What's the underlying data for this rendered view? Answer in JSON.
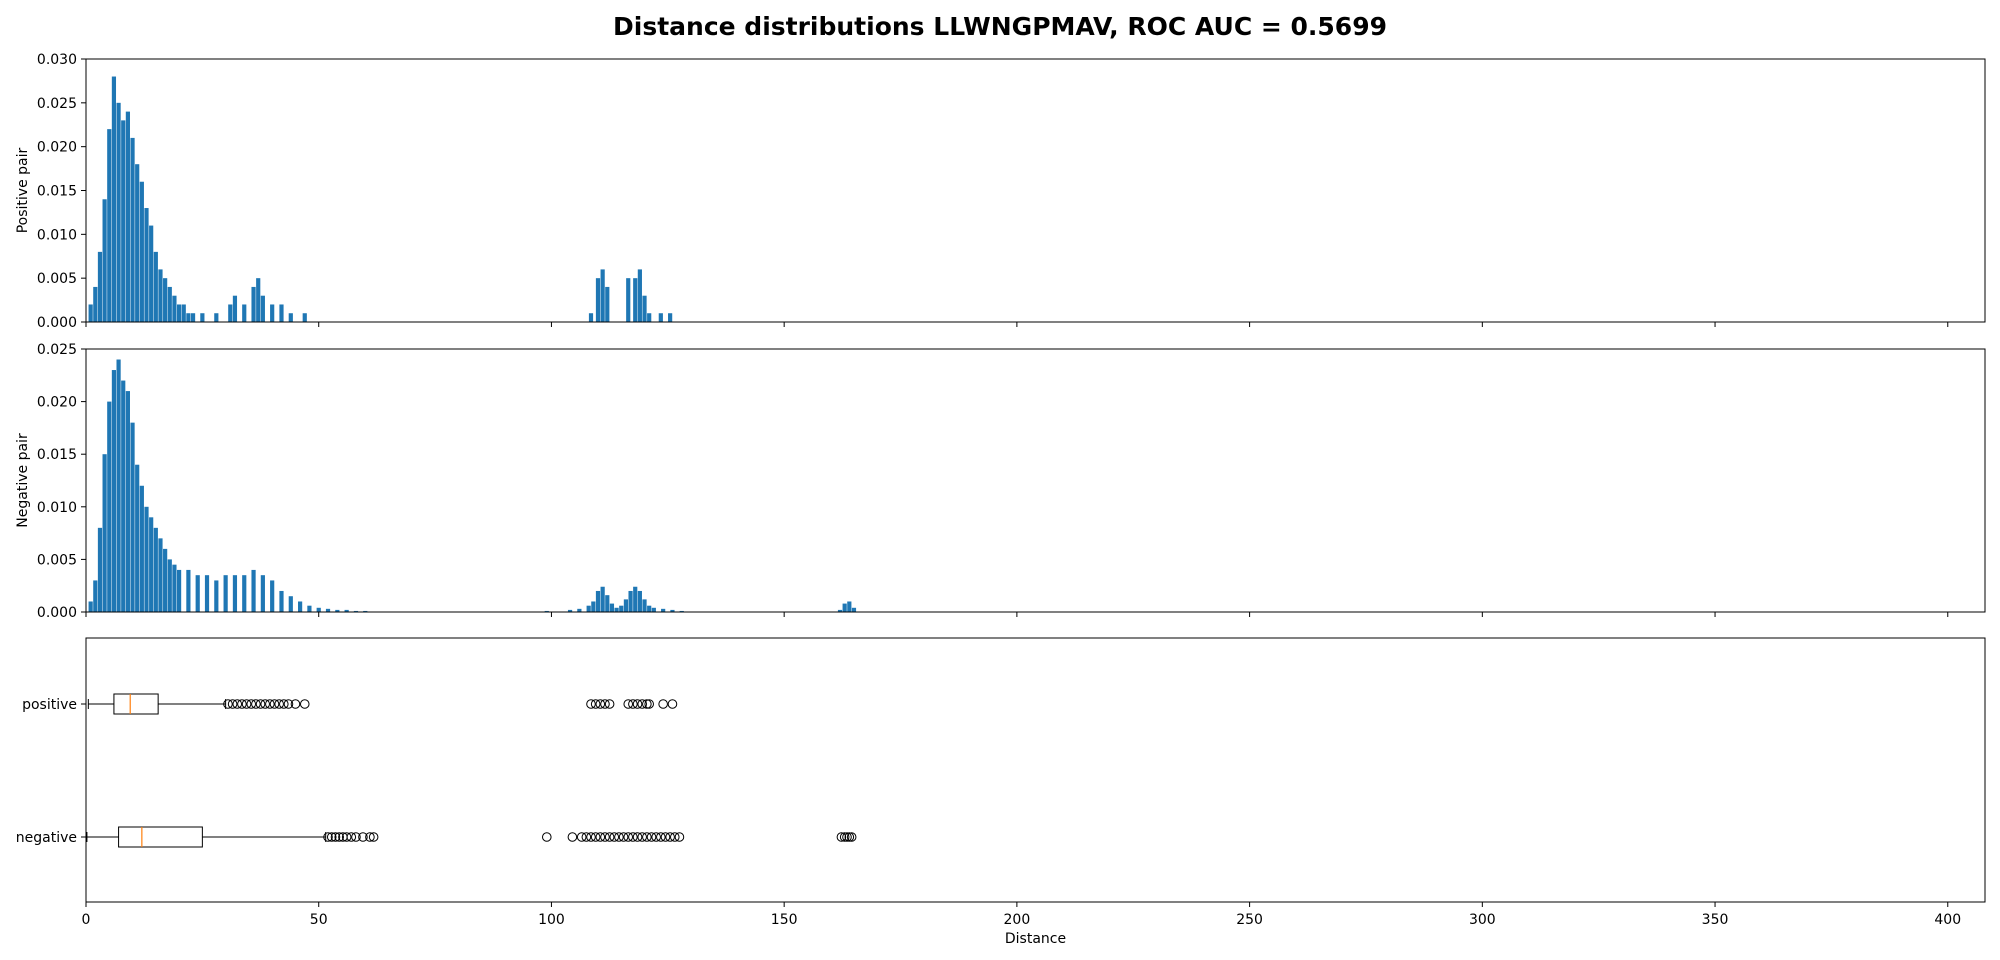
{
  "chart_data": {
    "type": "histogram",
    "title": "Distance distributions LLWNGPMAV, ROC AUC = 0.5699",
    "xlabel": "Distance",
    "xlim": [
      0,
      408
    ],
    "xticks": [
      0,
      50,
      100,
      150,
      200,
      250,
      300,
      350,
      400
    ],
    "color": "#1f77b4",
    "median_color": "#ff7f0e",
    "grid": false,
    "histograms": [
      {
        "name": "positive",
        "ylabel": "Positive pair",
        "ylim": [
          0,
          0.03
        ],
        "yticks": [
          "0.000",
          "0.005",
          "0.010",
          "0.015",
          "0.020",
          "0.025",
          "0.030"
        ],
        "bins": [
          [
            1,
            0.002
          ],
          [
            2,
            0.004
          ],
          [
            3,
            0.008
          ],
          [
            4,
            0.014
          ],
          [
            5,
            0.022
          ],
          [
            6,
            0.028
          ],
          [
            7,
            0.025
          ],
          [
            8,
            0.023
          ],
          [
            9,
            0.024
          ],
          [
            10,
            0.021
          ],
          [
            11,
            0.018
          ],
          [
            12,
            0.016
          ],
          [
            13,
            0.013
          ],
          [
            14,
            0.011
          ],
          [
            15,
            0.008
          ],
          [
            16,
            0.006
          ],
          [
            17,
            0.005
          ],
          [
            18,
            0.004
          ],
          [
            19,
            0.003
          ],
          [
            20,
            0.002
          ],
          [
            21,
            0.002
          ],
          [
            22,
            0.001
          ],
          [
            23,
            0.001
          ],
          [
            25,
            0.001
          ],
          [
            28,
            0.001
          ],
          [
            31,
            0.002
          ],
          [
            32,
            0.003
          ],
          [
            34,
            0.002
          ],
          [
            36,
            0.004
          ],
          [
            37,
            0.005
          ],
          [
            38,
            0.003
          ],
          [
            40,
            0.002
          ],
          [
            42,
            0.002
          ],
          [
            44,
            0.001
          ],
          [
            47,
            0.001
          ],
          [
            108.5,
            0.001
          ],
          [
            110,
            0.005
          ],
          [
            111,
            0.006
          ],
          [
            112,
            0.004
          ],
          [
            116.5,
            0.005
          ],
          [
            118,
            0.005
          ],
          [
            119,
            0.006
          ],
          [
            120,
            0.003
          ],
          [
            121,
            0.001
          ],
          [
            123.5,
            0.001
          ],
          [
            125.5,
            0.001
          ]
        ]
      },
      {
        "name": "negative",
        "ylabel": "Negative pair",
        "ylim": [
          0,
          0.025
        ],
        "yticks": [
          "0.000",
          "0.005",
          "0.010",
          "0.015",
          "0.020",
          "0.025"
        ],
        "bins": [
          [
            1,
            0.001
          ],
          [
            2,
            0.003
          ],
          [
            3,
            0.008
          ],
          [
            4,
            0.015
          ],
          [
            5,
            0.02
          ],
          [
            6,
            0.023
          ],
          [
            7,
            0.024
          ],
          [
            8,
            0.022
          ],
          [
            9,
            0.021
          ],
          [
            10,
            0.018
          ],
          [
            11,
            0.014
          ],
          [
            12,
            0.012
          ],
          [
            13,
            0.01
          ],
          [
            14,
            0.009
          ],
          [
            15,
            0.008
          ],
          [
            16,
            0.007
          ],
          [
            17,
            0.006
          ],
          [
            18,
            0.005
          ],
          [
            19,
            0.0045
          ],
          [
            20,
            0.004
          ],
          [
            22,
            0.004
          ],
          [
            24,
            0.0035
          ],
          [
            26,
            0.0035
          ],
          [
            28,
            0.003
          ],
          [
            30,
            0.0035
          ],
          [
            32,
            0.0035
          ],
          [
            34,
            0.0035
          ],
          [
            36,
            0.004
          ],
          [
            38,
            0.0035
          ],
          [
            40,
            0.003
          ],
          [
            42,
            0.002
          ],
          [
            44,
            0.0015
          ],
          [
            46,
            0.001
          ],
          [
            48,
            0.0006
          ],
          [
            50,
            0.0004
          ],
          [
            52,
            0.0003
          ],
          [
            54,
            0.0002
          ],
          [
            56,
            0.0002
          ],
          [
            58,
            0.0001
          ],
          [
            60,
            0.0001
          ],
          [
            99,
            0.0001
          ],
          [
            104,
            0.0002
          ],
          [
            106,
            0.0003
          ],
          [
            108,
            0.0006
          ],
          [
            109,
            0.001
          ],
          [
            110,
            0.002
          ],
          [
            111,
            0.0024
          ],
          [
            112,
            0.0016
          ],
          [
            113,
            0.0008
          ],
          [
            114,
            0.0004
          ],
          [
            115,
            0.0006
          ],
          [
            116,
            0.0012
          ],
          [
            117,
            0.002
          ],
          [
            118,
            0.0024
          ],
          [
            119,
            0.002
          ],
          [
            120,
            0.0012
          ],
          [
            121,
            0.0006
          ],
          [
            122,
            0.0004
          ],
          [
            124,
            0.0003
          ],
          [
            126,
            0.0002
          ],
          [
            128,
            0.0001
          ],
          [
            162,
            0.0002
          ],
          [
            163,
            0.0008
          ],
          [
            164,
            0.001
          ],
          [
            165,
            0.0004
          ]
        ]
      }
    ],
    "boxplots": [
      {
        "name": "positive",
        "whisker_low": 0.5,
        "q1": 6,
        "median": 9.5,
        "q3": 15.5,
        "whisker_high": 30,
        "outliers": [
          30.5,
          31.5,
          32.5,
          33.5,
          34.5,
          35.5,
          36.5,
          37.5,
          38.5,
          39.5,
          40.5,
          41.5,
          42.5,
          43.5,
          45,
          47,
          108.5,
          109.5,
          110.5,
          111.5,
          112.5,
          116.5,
          117.5,
          118.5,
          119.5,
          120.5,
          121,
          124,
          126
        ]
      },
      {
        "name": "negative",
        "whisker_low": 0.2,
        "q1": 7,
        "median": 12,
        "q3": 25,
        "whisker_high": 51.5,
        "outliers": [
          52,
          52.8,
          53.6,
          54.4,
          55.2,
          56,
          57,
          58,
          59.5,
          61,
          61.8,
          99,
          104.5,
          106.5,
          107.5,
          108.5,
          109.5,
          110.5,
          111.5,
          112.5,
          113.5,
          114.5,
          115.5,
          116.5,
          117.5,
          118.5,
          119.5,
          120.5,
          121.5,
          122.5,
          123.5,
          124.5,
          125.5,
          126.5,
          127.5,
          162.3,
          163,
          163.5,
          164,
          164.5
        ]
      }
    ]
  }
}
